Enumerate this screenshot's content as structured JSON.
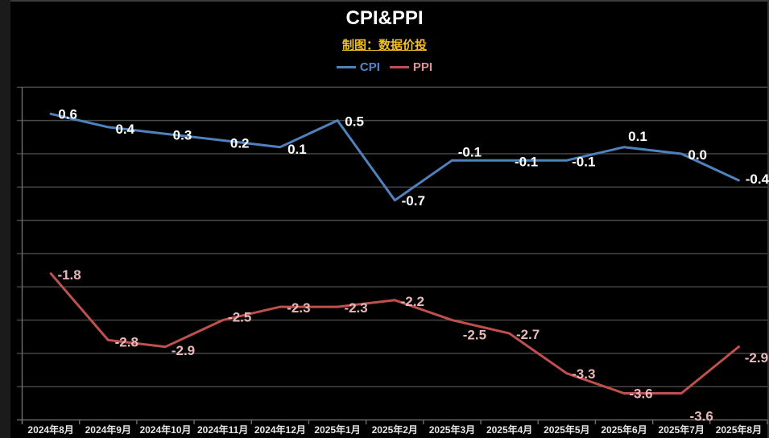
{
  "header": {
    "title": "CPI&PPI",
    "subtitle": "制图：数据价投",
    "legend": [
      {
        "label": "CPI",
        "swatch_color": "#4F81BD",
        "text_color": "#5287C5"
      },
      {
        "label": "PPI",
        "swatch_color": "#C0504D",
        "text_color": "#D99694"
      }
    ]
  },
  "colors": {
    "background": "#000000",
    "title_text": "#FFFFFF",
    "subtitle_gold": "#F0C020",
    "gridline": "#4A4A4A",
    "axis_line": "#6E6E6E",
    "x_label_text": "#E6E6E6",
    "cpi_line": "#4F81BD",
    "cpi_label_text": "#FFFFFF",
    "ppi_line": "#C0504D",
    "ppi_label_text": "#E6B9B8"
  },
  "chart_data": {
    "type": "line",
    "title": "CPI&PPI",
    "subtitle": "制图：数据价投",
    "categories": [
      "2024年8月",
      "2024年9月",
      "2024年10月",
      "2024年11月",
      "2024年12月",
      "2025年1月",
      "2025年2月",
      "2025年3月",
      "2025年4月",
      "2025年5月",
      "2025年6月",
      "2025年7月",
      "2025年8月"
    ],
    "series": [
      {
        "name": "CPI",
        "color": "#4F81BD",
        "label_color": "#FFFFFF",
        "values": [
          0.6,
          0.4,
          0.3,
          0.2,
          0.1,
          0.5,
          -0.7,
          -0.1,
          -0.1,
          -0.1,
          0.1,
          0.0,
          -0.4
        ],
        "label_offsets": [
          [
            21,
            0
          ],
          [
            21,
            2
          ],
          [
            21,
            1
          ],
          [
            21,
            3
          ],
          [
            21,
            2
          ],
          [
            21,
            1
          ],
          [
            23,
            0
          ],
          [
            22,
            -11
          ],
          [
            21,
            1
          ],
          [
            21,
            1
          ],
          [
            17,
            -14
          ],
          [
            20,
            1
          ],
          [
            23,
            -2
          ]
        ]
      },
      {
        "name": "PPI",
        "color": "#C0504D",
        "label_color": "#E6B9B8",
        "values": [
          -1.8,
          -2.8,
          -2.9,
          -2.5,
          -2.3,
          -2.3,
          -2.2,
          -2.5,
          -2.7,
          -3.3,
          -3.6,
          -3.6,
          -2.9
        ],
        "label_offsets": [
          [
            23,
            1
          ],
          [
            23,
            2
          ],
          [
            22,
            4
          ],
          [
            21,
            -4
          ],
          [
            23,
            1
          ],
          [
            23,
            1
          ],
          [
            22,
            1
          ],
          [
            28,
            18
          ],
          [
            23,
            1
          ],
          [
            21,
            0
          ],
          [
            21,
            0
          ],
          [
            25,
            28
          ],
          [
            22,
            13
          ]
        ]
      }
    ],
    "ylim": [
      -4.0,
      1.0
    ],
    "y_gridline_step": 0.5,
    "y_axis_labels_visible": false,
    "grid": true,
    "legend_position": "top",
    "decimal_places": 1
  }
}
